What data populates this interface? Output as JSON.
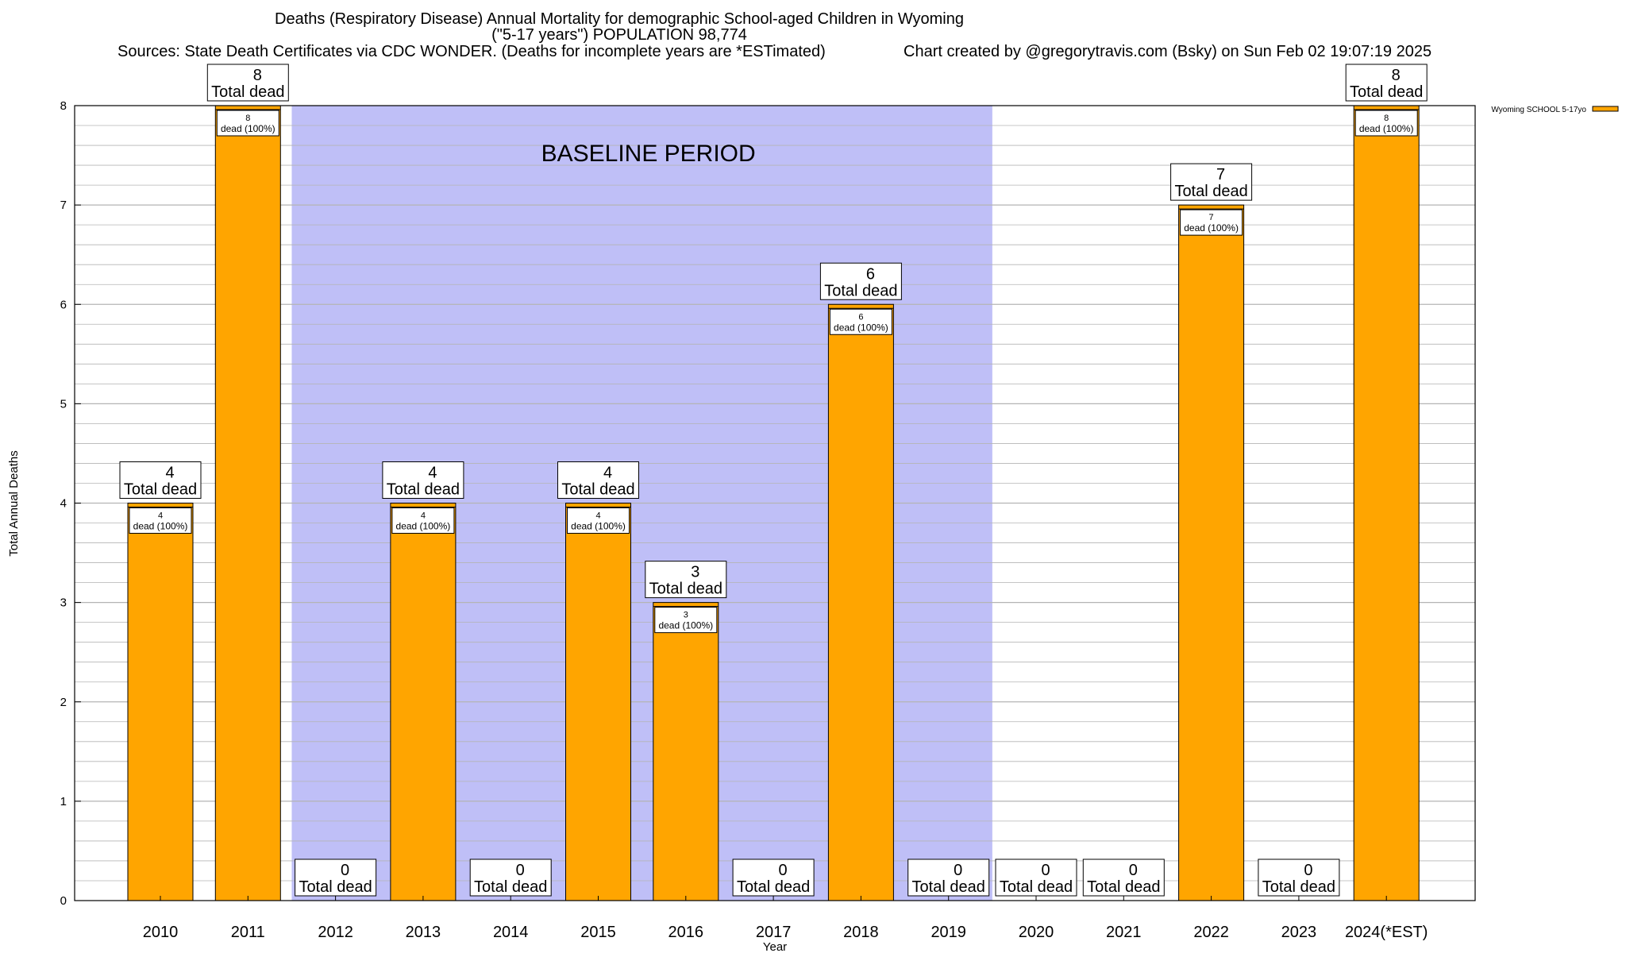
{
  "title": {
    "line1": "Deaths (Respiratory Disease) Annual Mortality for demographic School-aged Children in Wyoming",
    "line2": "(\"5-17 years\") POPULATION 98,774",
    "sources": "Sources: State Death Certificates via CDC WONDER. (Deaths for incomplete years are *ESTimated)",
    "credit": "Chart created by @gregorytravis.com (Bsky) on Sun Feb 02 19:07:19 2025"
  },
  "legend": {
    "label": "Wyoming SCHOOL 5-17yo",
    "placement": "top-right"
  },
  "baseline_label": "BASELINE PERIOD",
  "total_label": "Total dead",
  "segment_label_suffix": "dead (100%)",
  "colors": {
    "bar": "#ffa500",
    "baseline": "#bfbff7",
    "grid": "#b4b4b4",
    "border": "#000000"
  },
  "chart_data": {
    "type": "bar",
    "xlabel": "Year",
    "ylabel": "Total Annual Deaths",
    "ylim": [
      0,
      8
    ],
    "yticks": [
      0,
      1,
      2,
      3,
      4,
      5,
      6,
      7,
      8
    ],
    "grid": true,
    "categories": [
      "2010",
      "2011",
      "2012",
      "2013",
      "2014",
      "2015",
      "2016",
      "2017",
      "2018",
      "2019",
      "2020",
      "2021",
      "2022",
      "2023",
      "2024(*EST)"
    ],
    "series": [
      {
        "name": "Wyoming SCHOOL 5-17yo",
        "values": [
          4,
          8,
          0,
          4,
          0,
          4,
          3,
          0,
          6,
          0,
          0,
          0,
          7,
          0,
          8
        ]
      }
    ],
    "baseline_period": [
      "2012",
      "2019"
    ]
  }
}
